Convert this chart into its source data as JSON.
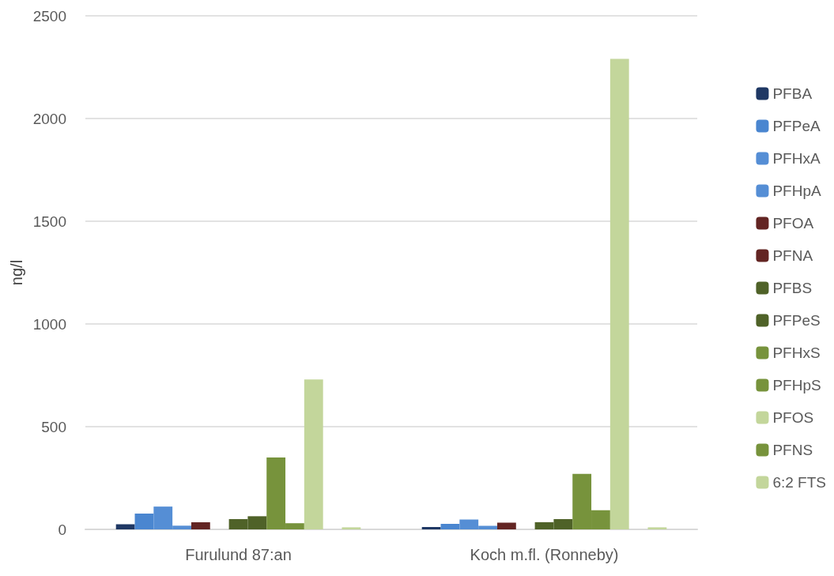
{
  "chart_data": {
    "type": "bar",
    "ylabel": "ng/l",
    "categories": [
      "Furulund 87:an",
      "Koch m.fl. (Ronneby)"
    ],
    "series": [
      {
        "name": "PFBA",
        "color": "#1f3864",
        "values": [
          25,
          12
        ]
      },
      {
        "name": "PFPeA",
        "color": "#4a86d0",
        "values": [
          77,
          27
        ]
      },
      {
        "name": "PFHxA",
        "color": "#558ed5",
        "values": [
          111,
          48
        ]
      },
      {
        "name": "PFHpA",
        "color": "#558ed5",
        "values": [
          18,
          17
        ]
      },
      {
        "name": "PFOA",
        "color": "#632523",
        "values": [
          35,
          33
        ]
      },
      {
        "name": "PFNA",
        "color": "#632523",
        "values": [
          0,
          0
        ]
      },
      {
        "name": "PFBS",
        "color": "#4f6228",
        "values": [
          50,
          35
        ]
      },
      {
        "name": "PFPeS",
        "color": "#4f6228",
        "values": [
          64,
          50
        ]
      },
      {
        "name": "PFHxS",
        "color": "#77933c",
        "values": [
          350,
          270
        ]
      },
      {
        "name": "PFHpS",
        "color": "#77933c",
        "values": [
          30,
          93
        ]
      },
      {
        "name": "PFOS",
        "color": "#c3d69b",
        "values": [
          730,
          2290
        ]
      },
      {
        "name": "PFNS",
        "color": "#77933c",
        "values": [
          0,
          0
        ]
      },
      {
        "name": "6:2 FTS",
        "color": "#c3d69b",
        "values": [
          10,
          10
        ]
      }
    ],
    "ylim": [
      0,
      2500
    ],
    "yticks": [
      0,
      500,
      1000,
      1500,
      2000,
      2500
    ],
    "grid": "y",
    "legend": "right"
  }
}
